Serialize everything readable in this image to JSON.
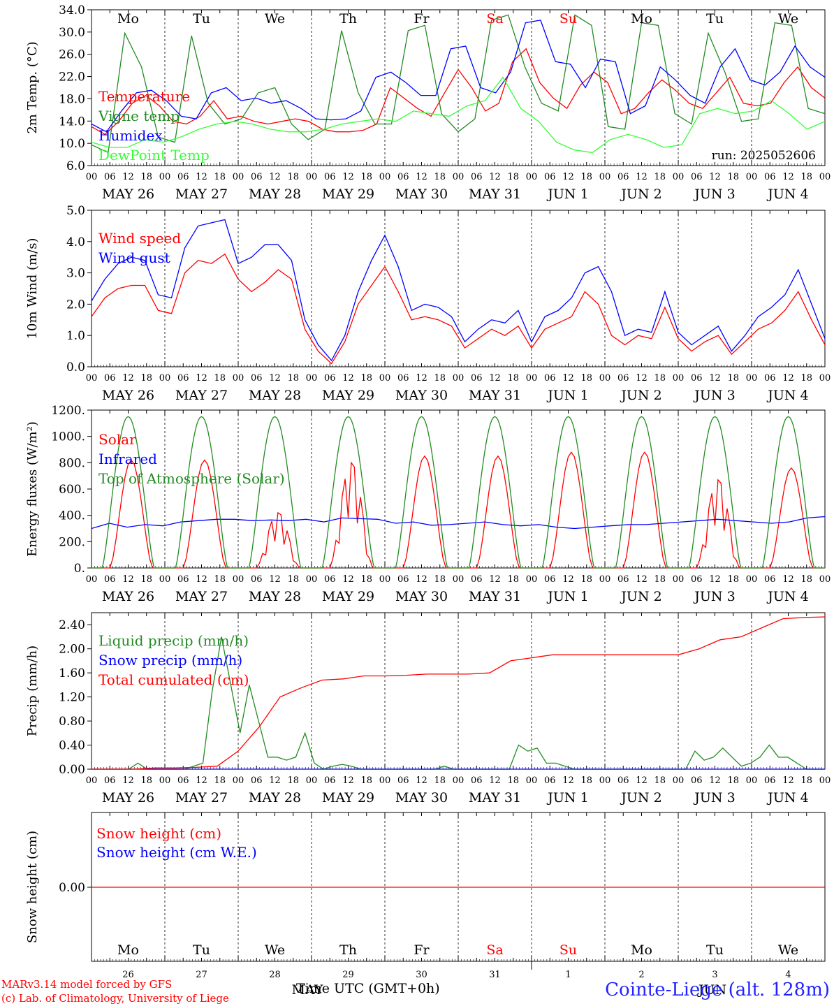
{
  "chart_data": [
    {
      "type": "line",
      "ylabel": "2m Temp. (°C)",
      "ylim": [
        6,
        36
      ],
      "yticks": [
        "6.0",
        "10.0",
        "14.0",
        "18.0",
        "22.0",
        "26.0",
        "30.0",
        "34.0"
      ],
      "annotation": "run: 2025052606",
      "series": [
        {
          "name": "Temperature",
          "color": "#ff0000",
          "values": [
            13.5,
            12.0,
            14.5,
            18.0,
            19.5,
            17.5,
            14.5,
            14.0,
            15.5,
            18.5,
            15.0,
            15.5,
            14.5,
            14.0,
            14.5,
            15.0,
            14.5,
            13.0,
            12.5,
            12.5,
            12.8,
            14.0,
            21.0,
            19.0,
            17.0,
            15.5,
            20.0,
            24.5,
            21.0,
            16.5,
            18.0,
            26.0,
            28.5,
            22.0,
            19.0,
            17.0,
            21.5,
            24.0,
            22.0,
            16.0,
            17.0,
            20.0,
            22.5,
            20.5,
            18.0,
            17.0,
            20.0,
            23.0,
            18.0,
            17.5,
            18.0,
            22.0,
            25.0,
            21.0,
            19.0
          ]
        },
        {
          "name": "Vigne temp",
          "color": "#228b22",
          "values": [
            10.0,
            8.5,
            31.5,
            25.0,
            11.5,
            10.5,
            31.0,
            18.0,
            14.0,
            15.0,
            20.0,
            21.0,
            14.0,
            11.0,
            13.0,
            32.0,
            20.0,
            14.0,
            14.0,
            32.0,
            33.0,
            16.0,
            12.5,
            15.0,
            34.0,
            35.0,
            25.0,
            18.0,
            16.5,
            35.0,
            33.0,
            13.5,
            13.0,
            33.5,
            33.0,
            16.0,
            14.0,
            31.5,
            24.0,
            14.5,
            15.0,
            33.5,
            33.0,
            17.0,
            16.0
          ]
        },
        {
          "name": "Humidex",
          "color": "#0000ff",
          "values": [
            14.0,
            12.5,
            16.5,
            20.0,
            20.5,
            18.5,
            15.5,
            15.0,
            20.0,
            21.0,
            18.5,
            19.0,
            18.0,
            18.5,
            17.0,
            15.0,
            14.8,
            15.0,
            16.5,
            23.0,
            24.0,
            22.0,
            19.5,
            19.5,
            28.5,
            29.0,
            21.0,
            20.0,
            24.0,
            33.5,
            34.0,
            26.0,
            25.5,
            21.0,
            26.5,
            26.0,
            16.0,
            17.5,
            25.0,
            22.5,
            19.5,
            18.0,
            25.0,
            28.5,
            22.5,
            21.5,
            24.0,
            29.0,
            25.0,
            23.0
          ]
        },
        {
          "name": "DewPoint Temp",
          "color": "#33ff33",
          "values": [
            10.5,
            9.5,
            9.5,
            11.0,
            10.5,
            11.5,
            13.0,
            14.0,
            14.5,
            14.0,
            13.0,
            12.5,
            12.5,
            13.0,
            14.0,
            14.5,
            15.0,
            14.5,
            16.5,
            16.0,
            15.5,
            17.5,
            18.5,
            23.0,
            17.0,
            14.5,
            10.5,
            9.0,
            8.5,
            11.0,
            12.0,
            11.0,
            9.5,
            10.0,
            16.0,
            17.0,
            16.0,
            16.5,
            18.5,
            16.0,
            13.0,
            14.5
          ]
        }
      ]
    },
    {
      "type": "line",
      "ylabel": "10m Wind (m/s)",
      "ylim": [
        0,
        5
      ],
      "yticks": [
        "0.0",
        "1.0",
        "2.0",
        "3.0",
        "4.0",
        "5.0"
      ],
      "series": [
        {
          "name": "Wind speed",
          "color": "#ff0000",
          "values": [
            1.6,
            2.2,
            2.5,
            2.6,
            2.6,
            1.8,
            1.7,
            3.0,
            3.4,
            3.3,
            3.6,
            2.8,
            2.4,
            2.7,
            3.1,
            2.8,
            1.2,
            0.5,
            0.1,
            0.8,
            2.0,
            2.6,
            3.2,
            2.4,
            1.5,
            1.6,
            1.5,
            1.3,
            0.6,
            0.9,
            1.2,
            1.0,
            1.3,
            0.6,
            1.2,
            1.4,
            1.6,
            2.4,
            2.0,
            1.0,
            0.7,
            1.0,
            0.9,
            1.9,
            0.9,
            0.5,
            0.8,
            1.0,
            0.4,
            0.8,
            1.2,
            1.4,
            1.8,
            2.4,
            1.5,
            0.7
          ]
        },
        {
          "name": "Wind gust",
          "color": "#0000ff",
          "values": [
            2.1,
            2.8,
            3.3,
            3.5,
            3.4,
            2.3,
            2.2,
            3.8,
            4.5,
            4.6,
            4.7,
            3.3,
            3.5,
            3.9,
            3.9,
            3.4,
            1.5,
            0.7,
            0.2,
            1.0,
            2.4,
            3.4,
            4.2,
            3.2,
            1.8,
            2.0,
            1.9,
            1.6,
            0.8,
            1.2,
            1.5,
            1.4,
            1.8,
            0.8,
            1.6,
            1.8,
            2.2,
            3.0,
            3.2,
            2.4,
            1.0,
            1.2,
            1.1,
            2.4,
            1.1,
            0.7,
            1.0,
            1.3,
            0.5,
            1.0,
            1.6,
            1.9,
            2.3,
            3.1,
            2.0,
            0.9
          ]
        }
      ]
    },
    {
      "type": "line",
      "ylabel": "Energy fluxes (W/m²)",
      "ylim": [
        0,
        1200
      ],
      "yticks": [
        "0.",
        "200.",
        "400.",
        "600.",
        "800.",
        "1000.",
        "1200."
      ],
      "series": [
        {
          "name": "Solar",
          "color": "#ff0000",
          "peaks": [
            820,
            820,
            420,
            800,
            850,
            850,
            880,
            880,
            670,
            760
          ]
        },
        {
          "name": "Infrared",
          "color": "#0000ff",
          "values": [
            300,
            340,
            310,
            330,
            320,
            350,
            360,
            370,
            370,
            360,
            365,
            360,
            370,
            350,
            380,
            375,
            370,
            340,
            350,
            325,
            330,
            340,
            350,
            330,
            320,
            330,
            310,
            300,
            310,
            320,
            330,
            330,
            340,
            350,
            360,
            370,
            360,
            350,
            340,
            350,
            380,
            390
          ]
        },
        {
          "name": "Top of Atmosphere (Solar)",
          "color": "#228b22",
          "peak": 1150
        }
      ]
    },
    {
      "type": "line",
      "ylabel": "Precip (mm/h)",
      "ylim": [
        0,
        2.6
      ],
      "yticks": [
        "0.00",
        "0.40",
        "0.80",
        "1.20",
        "1.60",
        "2.00",
        "2.40"
      ],
      "series": [
        {
          "name": "Liquid precip (mm/h)",
          "color": "#228b22",
          "values": [
            0,
            0,
            0,
            0,
            0,
            0.1,
            0,
            0,
            0,
            0,
            0,
            0.05,
            0.1,
            1.3,
            2.2,
            1.4,
            0.6,
            1.4,
            0.8,
            0.2,
            0.2,
            0.15,
            0.2,
            0.6,
            0.1,
            0,
            0.05,
            0.08,
            0.05,
            0,
            0,
            0,
            0,
            0,
            0,
            0,
            0,
            0,
            0.05,
            0,
            0,
            0,
            0,
            0,
            0,
            0,
            0.4,
            0.3,
            0.35,
            0.1,
            0.1,
            0.05,
            0,
            0,
            0,
            0,
            0,
            0,
            0,
            0,
            0,
            0,
            0,
            0,
            0,
            0.3,
            0.15,
            0.2,
            0.35,
            0.2,
            0.05,
            0.1,
            0.2,
            0.4,
            0.2,
            0.2,
            0.1,
            0,
            0,
            0
          ]
        },
        {
          "name": "Snow precip (mm/h)",
          "color": "#0000ff",
          "values": [
            0
          ]
        },
        {
          "name": "Total cumulated (cm)",
          "color": "#ff0000",
          "values": [
            0,
            0,
            0,
            0.02,
            0.02,
            0.03,
            0.05,
            0.3,
            0.7,
            1.2,
            1.35,
            1.48,
            1.5,
            1.55,
            1.55,
            1.56,
            1.58,
            1.58,
            1.58,
            1.6,
            1.8,
            1.85,
            1.9,
            1.9,
            1.9,
            1.9,
            1.9,
            1.9,
            1.9,
            2.0,
            2.15,
            2.2,
            2.35,
            2.5,
            2.52,
            2.53
          ]
        }
      ]
    },
    {
      "type": "line",
      "ylabel": "Snow height (cm)",
      "yticks": [
        "0.00"
      ],
      "series": [
        {
          "name": "Snow height (cm)",
          "color": "#ff0000",
          "values": [
            0.0
          ]
        },
        {
          "name": "Snow height (cm W.E.)",
          "color": "#0000ff",
          "values": [
            0.0
          ]
        }
      ]
    }
  ],
  "x_axis": {
    "hour_labels": [
      "00",
      "06",
      "12",
      "18"
    ],
    "final_hour_label": "00",
    "date_labels": [
      "MAY 26",
      "MAY 27",
      "MAY 28",
      "MAY 29",
      "MAY 30",
      "MAY 31",
      "JUN  1",
      "JUN  2",
      "JUN  3",
      "JUN  4"
    ],
    "weekdays": [
      "Mo",
      "Tu",
      "We",
      "Th",
      "Fr",
      "Sa",
      "Su",
      "Mo",
      "Tu",
      "We"
    ],
    "weekday_colors": [
      "#000000",
      "#000000",
      "#000000",
      "#000000",
      "#000000",
      "#ff0000",
      "#ff0000",
      "#000000",
      "#000000",
      "#000000"
    ],
    "day_numbers": [
      "26",
      "27",
      "28",
      "29",
      "30",
      "31",
      "1",
      "2",
      "3",
      "4"
    ],
    "month_labels": [
      "MAY",
      "JUN"
    ],
    "title": "Time UTC (GMT+0h)"
  },
  "footer": {
    "line1": "MARv3.14 model forced by GFS",
    "line2": "(c) Lab. of Climatology, University of Liege",
    "station": "Cointe-Liege (alt. 128m)"
  }
}
